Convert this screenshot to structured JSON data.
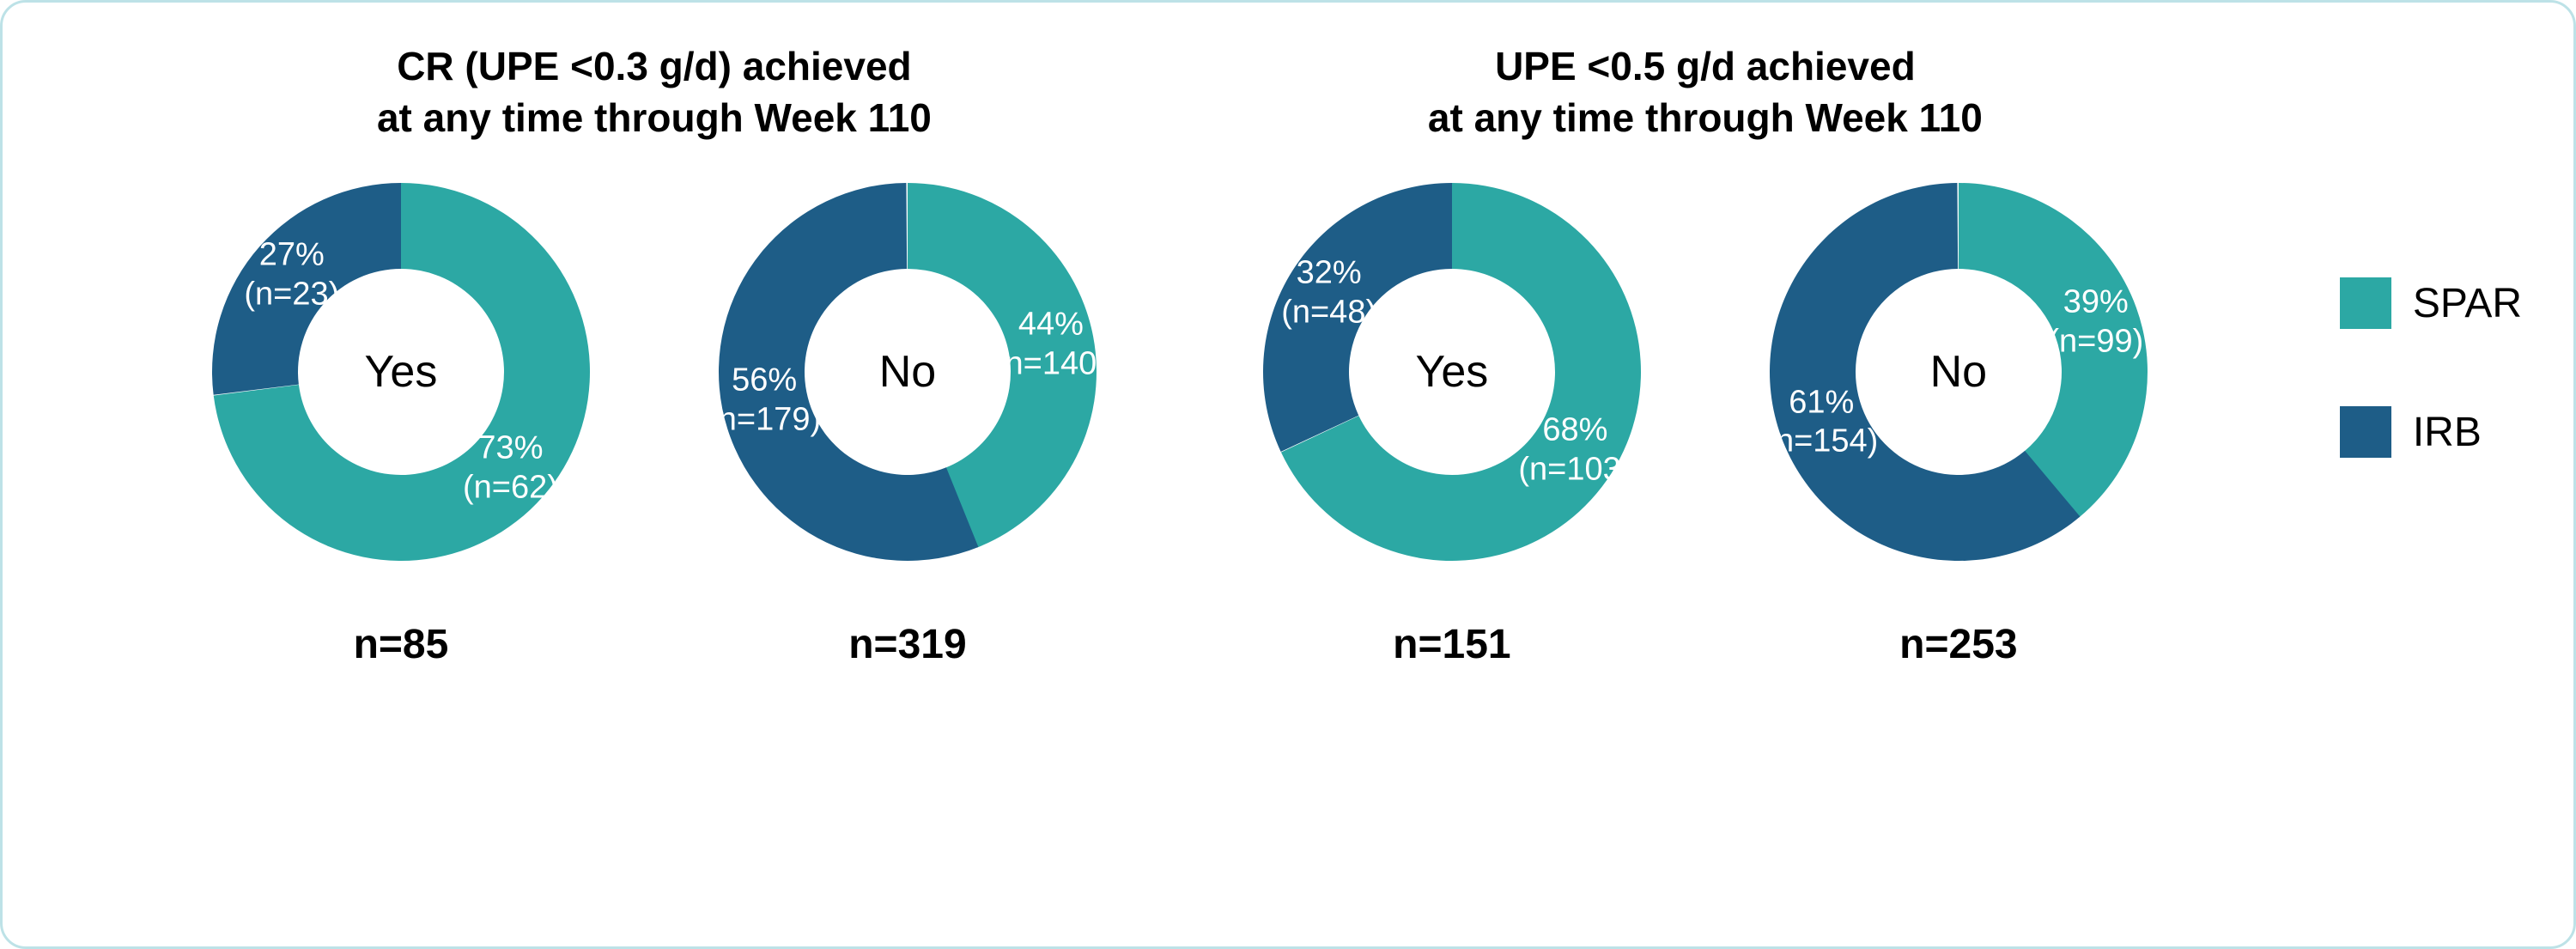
{
  "colors": {
    "spar": "#2ca8a4",
    "irb": "#1e5d87",
    "frame_border": "#bde2e7",
    "background": "#ffffff",
    "text": "#000000",
    "slice_label": "#ffffff"
  },
  "legend": [
    {
      "key": "spar",
      "label": "SPAR"
    },
    {
      "key": "irb",
      "label": "IRB"
    }
  ],
  "donut_geometry": {
    "size": 460,
    "outer_radius": 220,
    "inner_radius": 120,
    "label_radius": 170
  },
  "title_fontsize": 46,
  "center_fontsize": 52,
  "slice_label_fontsize": 38,
  "n_fontsize": 48,
  "legend_fontsize": 48,
  "groups": [
    {
      "title": "CR (UPE <0.3 g/d) achieved\nat any time through Week 110",
      "donuts": [
        {
          "center": "Yes",
          "n_total": "n=85",
          "slices": [
            {
              "series": "irb",
              "pct": 27,
              "n": 23,
              "start_deg": -97,
              "label": "27%\n(n=23)"
            },
            {
              "series": "spar",
              "pct": 73,
              "n": 62,
              "start_deg": 0,
              "label": "73%\n(n=62)"
            }
          ]
        },
        {
          "center": "No",
          "n_total": "n=319",
          "slices": [
            {
              "series": "spar",
              "pct": 44,
              "n": 140,
              "start_deg": 0,
              "label": "44%\n(n=140)"
            },
            {
              "series": "irb",
              "pct": 56,
              "n": 179,
              "start_deg": 158,
              "label": "56%\n(n=179)"
            }
          ]
        }
      ]
    },
    {
      "title": "UPE <0.5 g/d achieved\nat any time through Week 110",
      "donuts": [
        {
          "center": "Yes",
          "n_total": "n=151",
          "slices": [
            {
              "series": "irb",
              "pct": 32,
              "n": 48,
              "start_deg": -115,
              "label": "32%\n(n=48)"
            },
            {
              "series": "spar",
              "pct": 68,
              "n": 103,
              "start_deg": 0,
              "label": "68%\n(n=103)"
            }
          ]
        },
        {
          "center": "No",
          "n_total": "n=253",
          "slices": [
            {
              "series": "spar",
              "pct": 39,
              "n": 99,
              "start_deg": 0,
              "label": "39%\n(n=99)"
            },
            {
              "series": "irb",
              "pct": 61,
              "n": 154,
              "start_deg": 140,
              "label": "61%\n(n=154)"
            }
          ]
        }
      ]
    }
  ]
}
